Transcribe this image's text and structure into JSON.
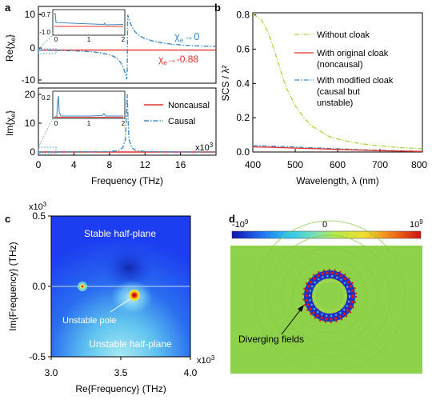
{
  "colors": {
    "red": "#e8302a",
    "blue": "#3f8cc8",
    "green": "#a6d63c",
    "field_bg": "#8ed24a"
  },
  "panels": {
    "a": "a",
    "b": "b",
    "c": "c",
    "d": "d"
  },
  "chart_data": [
    {
      "panel": "a (top)",
      "type": "line",
      "ylabel": "Re{χ",
      "ylabel_sub": "e",
      "ylabel_close": "}",
      "ylim": [
        -10,
        10
      ],
      "yticks": [
        "10",
        "0",
        "-10"
      ],
      "xlim": [
        0,
        20000
      ],
      "series": [
        {
          "name": "Causal",
          "color": "#3f8cc8",
          "style": "dash-dot",
          "x": [
            0,
            2000,
            4000,
            6000,
            7000,
            8000,
            8500,
            9000,
            9300,
            9600,
            9800,
            9900,
            9950,
            10000,
            10050,
            10100,
            10200,
            10400,
            10700,
            11000,
            11500,
            12000,
            13000,
            14000,
            15000,
            16000,
            17000,
            18000,
            19000,
            20000
          ],
          "y": [
            -0.9,
            -1.0,
            -1.1,
            -1.4,
            -1.7,
            -2.3,
            -2.8,
            -3.8,
            -4.8,
            -6.5,
            -8.2,
            -9.3,
            -9.8,
            -7,
            9.8,
            9.5,
            8.6,
            7.0,
            5.4,
            4.4,
            3.3,
            2.6,
            1.8,
            1.3,
            0.9,
            0.7,
            0.5,
            0.4,
            0.3,
            0.25
          ]
        },
        {
          "name": "Noncausal",
          "color": "#e8302a",
          "style": "solid",
          "x": [
            0,
            20000
          ],
          "y": [
            -0.88,
            -0.88
          ]
        }
      ],
      "annotations": [
        {
          "text": "χ",
          "sub": "e",
          "arrow": "→",
          "value": "0",
          "color": "#3f8cc8"
        },
        {
          "text": "χ",
          "sub": "e",
          "arrow": "→",
          "value": "-0.88",
          "color": "#e8302a"
        }
      ],
      "inset": {
        "xlim": [
          0,
          2
        ],
        "ylim": [
          -1.0,
          -0.7
        ],
        "xticks": [
          "0",
          "1",
          "2"
        ],
        "yticks": [
          "-0.7",
          "-1.0"
        ]
      }
    },
    {
      "panel": "a (bottom)",
      "type": "line",
      "ylabel": "Im{χ",
      "ylabel_sub": "e",
      "ylabel_close": "}",
      "ylim": [
        0,
        20
      ],
      "yticks": [
        "20",
        "10",
        "0"
      ],
      "xlim": [
        0,
        20000
      ],
      "xticks": [
        "0",
        "4",
        "8",
        "12",
        "16"
      ],
      "x_multiplier": "x10",
      "x_multiplier_exp": "3",
      "xlabel": "Frequency (THz)",
      "series": [
        {
          "name": "Noncausal",
          "color": "#e8302a",
          "style": "solid",
          "x": [
            0,
            20000
          ],
          "y": [
            0,
            0
          ]
        },
        {
          "name": "Causal",
          "color": "#3f8cc8",
          "style": "dash-dot",
          "x": [
            0,
            4000,
            8000,
            9000,
            9500,
            9800,
            9950,
            10000,
            10050,
            10200,
            10500,
            11000,
            12000,
            14000,
            16000,
            20000
          ],
          "y": [
            0,
            0.05,
            0.15,
            0.5,
            1.5,
            4.5,
            15,
            20,
            15,
            4.5,
            1.5,
            0.5,
            0.2,
            0.05,
            0.03,
            0
          ]
        }
      ],
      "inset": {
        "xlim": [
          0,
          2
        ],
        "ylim": [
          0,
          0.2
        ],
        "xticks": [
          "0",
          "1",
          "2"
        ],
        "yticks": [
          "0.2"
        ]
      }
    },
    {
      "panel": "b",
      "type": "line",
      "xlabel": "Wavelength, λ (nm)",
      "ylabel": "SCS / λ²",
      "xlim": [
        400,
        800
      ],
      "ylim": [
        0,
        0.8
      ],
      "xticks": [
        "400",
        "500",
        "600",
        "700",
        "800"
      ],
      "yticks": [
        "0.8",
        "0.6",
        "0.4",
        "0.2",
        "0.0"
      ],
      "series": [
        {
          "name": "Without cloak",
          "color": "#a6d63c",
          "style": "dash-dot",
          "x": [
            400,
            410,
            420,
            430,
            440,
            450,
            460,
            470,
            480,
            500,
            520,
            540,
            560,
            580,
            600,
            650,
            700,
            750,
            800
          ],
          "y": [
            0.8,
            0.79,
            0.77,
            0.73,
            0.67,
            0.6,
            0.52,
            0.44,
            0.37,
            0.27,
            0.2,
            0.15,
            0.12,
            0.09,
            0.075,
            0.05,
            0.035,
            0.025,
            0.02
          ]
        },
        {
          "name": "With original cloak (noncausal)",
          "color": "#e8302a",
          "style": "solid",
          "x": [
            400,
            450,
            500,
            550,
            600,
            650,
            700,
            750,
            800
          ],
          "y": [
            0.03,
            0.027,
            0.023,
            0.019,
            0.015,
            0.011,
            0.008,
            0.005,
            0.003
          ]
        },
        {
          "name": "With modified cloak (causal but unstable)",
          "color": "#3f8cc8",
          "style": "dash-dot",
          "x": [
            400,
            450,
            500,
            550,
            600,
            650,
            700,
            750,
            800
          ],
          "y": [
            0.038,
            0.034,
            0.029,
            0.024,
            0.019,
            0.014,
            0.01,
            0.007,
            0.004
          ]
        }
      ],
      "legend": [
        [
          "Without cloak"
        ],
        [
          "With original cloak",
          "(noncausal)"
        ],
        [
          "With modified cloak",
          "(causal but",
          "unstable)"
        ]
      ]
    },
    {
      "panel": "c",
      "type": "heatmap",
      "xlabel": "Re{Frequency} (THz)",
      "ylabel": "Im{Frequency} (THz)",
      "xlim": [
        3.0,
        4.0
      ],
      "ylim": [
        -0.5,
        0.5
      ],
      "xticks": [
        "3.0",
        "3.5",
        "4.0"
      ],
      "yticks": [
        "0.5",
        "0.0",
        "-0.5"
      ],
      "x_multiplier": "x10",
      "x_multiplier_exp": "3",
      "y_multiplier": "x10",
      "y_multiplier_exp": "3",
      "labels": {
        "stable": "Stable half-plane",
        "unstable": "Unstable half-plane",
        "pole": "Unstable pole"
      },
      "features": [
        {
          "kind": "zero-dip",
          "re": 3.55,
          "im": 0.14
        },
        {
          "kind": "small-peak",
          "re": 3.23,
          "im": 0.0
        },
        {
          "kind": "unstable-pole",
          "re": 3.58,
          "im": -0.06
        }
      ]
    },
    {
      "panel": "d",
      "type": "heatmap",
      "colorbar": {
        "min": "-10",
        "min_exp": "9",
        "mid": "0",
        "max": "10",
        "max_exp": "9"
      },
      "label": "Diverging fields"
    }
  ]
}
